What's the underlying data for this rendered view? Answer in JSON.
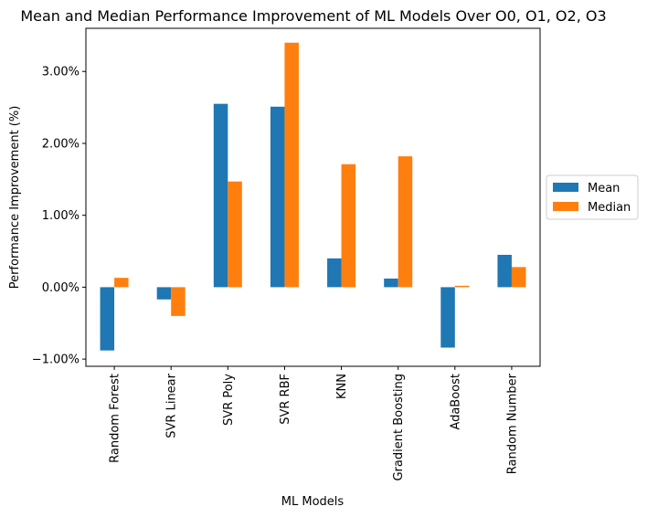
{
  "chart_data": {
    "type": "bar",
    "title": "Mean and Median Performance Improvement of ML Models Over O0, O1, O2, O3",
    "xlabel": "ML Models",
    "ylabel": "Performance Improvement (%)",
    "categories": [
      "Random Forest",
      "SVR Linear",
      "SVR Poly",
      "SVR RBF",
      "KNN",
      "Gradient Boosting",
      "AdaBoost",
      "Random Number"
    ],
    "series": [
      {
        "name": "Mean",
        "color": "#1f77b4",
        "values": [
          -0.88,
          -0.17,
          2.55,
          2.51,
          0.4,
          0.12,
          -0.84,
          0.45
        ]
      },
      {
        "name": "Median",
        "color": "#ff7f0e",
        "values": [
          0.13,
          -0.4,
          1.47,
          3.4,
          1.71,
          1.82,
          0.02,
          0.28
        ]
      }
    ],
    "ylim": [
      -1.1,
      3.6
    ],
    "yticks": [
      -1.0,
      0.0,
      1.0,
      2.0,
      3.0
    ],
    "ytick_labels": [
      "−1.00%",
      "0.00%",
      "1.00%",
      "2.00%",
      "3.00%"
    ],
    "legend_position": "center-right, outside plot",
    "grid": false
  }
}
